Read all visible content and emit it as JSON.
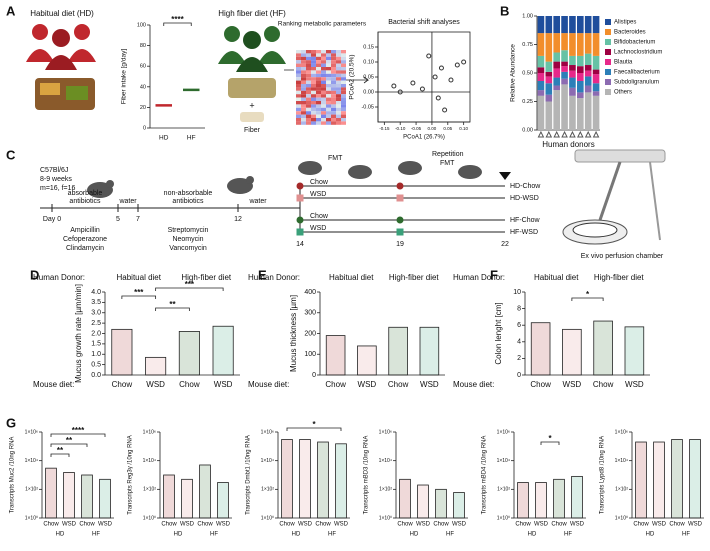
{
  "panel_labels": [
    "A",
    "B",
    "C",
    "D",
    "E",
    "F",
    "G"
  ],
  "panel_a": {
    "hd_label": "Habitual diet (HD)",
    "hf_label": "High fiber diet (HF)",
    "plus": "+",
    "fiber": "Fiber",
    "ranking": "Ranking metabolic parameters",
    "shift": "Bacterial shift analyses"
  },
  "panel_c": {
    "strain": "C57Bl/6J",
    "age": "8-9 weeks",
    "n": "m=16, f=16",
    "abs1": "absorbable",
    "abs2": "antibiotics",
    "water1": "water",
    "nonabs1": "non-absorbable",
    "nonabs2": "antibiotics",
    "water2": "water",
    "day0": "Day 0",
    "d5": "5",
    "d7": "7",
    "d12": "12",
    "drug1": "Ampicillin",
    "drug2": "Cefoperazone",
    "drug3": "Clindamycin",
    "drug4": "Streptomycin",
    "drug5": "Neomycin",
    "drug6": "Vancomycin",
    "fmt": "FMT",
    "rep1": "Repetition",
    "rep2": "FMT",
    "chow1": "Chow",
    "wsd1": "WSD",
    "chow2": "Chow",
    "wsd2": "WSD",
    "d14": "14",
    "d19": "19",
    "d22": "22",
    "g1": "HD-Chow",
    "g2": "HD-WSD",
    "g3": "HF-Chow",
    "g4": "HF-WSD",
    "chamber": "Ex vivo perfusion chamber"
  },
  "chart_data": [
    {
      "type": "mean",
      "ylabel": "Fiber intake [g/day]",
      "categories": [
        "HD",
        "HF"
      ],
      "values": [
        22,
        37
      ],
      "colors": [
        "#c0272d",
        "#2e6b2e"
      ],
      "ylim": [
        0,
        100
      ],
      "yticks": [
        0,
        20,
        40,
        60,
        80,
        100
      ],
      "annotations": [
        "****"
      ]
    },
    {
      "type": "scatter",
      "xlabel": "PCoA1 (26.7%)",
      "ylabel": "PCoA2 (20.5%)",
      "x": [
        -0.12,
        -0.1,
        -0.06,
        -0.03,
        -0.01,
        0.01,
        0.02,
        0.03,
        0.04,
        0.06,
        0.08,
        0.1
      ],
      "y": [
        0.02,
        0,
        0.03,
        0.01,
        0.12,
        0.05,
        -0.02,
        0.08,
        -0.06,
        0.04,
        0.09,
        0.1
      ],
      "color": "#333333",
      "xlim": [
        -0.17,
        0.12
      ],
      "ylim": [
        -0.1,
        0.2
      ],
      "xticks": [
        {
          "value": -0.15,
          "label": "-0.15"
        },
        {
          "value": -0.1,
          "label": "-0.10"
        },
        {
          "value": -0.05,
          "label": "-0.05"
        },
        {
          "value": 0,
          "label": "0.00"
        },
        {
          "value": 0.05,
          "label": "0.05"
        },
        {
          "value": 0.1,
          "label": "0.10"
        }
      ],
      "yticks": [
        {
          "value": -0.05,
          "label": "-0.05"
        },
        {
          "value": 0,
          "label": "0.00"
        },
        {
          "value": 0.05,
          "label": "0.05"
        },
        {
          "value": 0.1,
          "label": "0.10"
        },
        {
          "value": 0.15,
          "label": "0.15"
        }
      ]
    },
    {
      "type": "stacked",
      "ylabel": "Relative Abundance",
      "xlabel": "Human donors",
      "categories": [
        null,
        null,
        null,
        null,
        null,
        null,
        null,
        null
      ],
      "ylim": [
        0,
        1
      ],
      "yticks": [
        {
          "value": 0,
          "label": "0.00"
        },
        {
          "value": 0.25,
          "label": "0.25"
        },
        {
          "value": 0.5,
          "label": "0.50"
        },
        {
          "value": 0.75,
          "label": "0.75"
        },
        {
          "value": 1,
          "label": "1.00"
        }
      ],
      "series": [
        {
          "name": "Others",
          "color": "#b5b5b5",
          "values": [
            0.3,
            0.25,
            0.35,
            0.4,
            0.3,
            0.28,
            0.33,
            0.3
          ]
        },
        {
          "name": "Subdoligranulum",
          "color": "#8c6bb1",
          "values": [
            0.05,
            0.06,
            0.04,
            0.05,
            0.07,
            0.05,
            0.06,
            0.04
          ]
        },
        {
          "name": "Faecalibacterium",
          "color": "#2c7fb8",
          "values": [
            0.08,
            0.1,
            0.07,
            0.06,
            0.09,
            0.1,
            0.08,
            0.07
          ]
        },
        {
          "name": "Blautia",
          "color": "#e7298a",
          "values": [
            0.07,
            0.06,
            0.08,
            0.05,
            0.06,
            0.07,
            0.05,
            0.08
          ]
        },
        {
          "name": "Lachnoclostridium",
          "color": "#9e0142",
          "values": [
            0.05,
            0.04,
            0.06,
            0.04,
            0.05,
            0.06,
            0.05,
            0.04
          ]
        },
        {
          "name": "Bifidobacterium",
          "color": "#66c2a5",
          "values": [
            0.1,
            0.09,
            0.08,
            0.1,
            0.08,
            0.09,
            0.1,
            0.12
          ]
        },
        {
          "name": "Bacteroides",
          "color": "#f28e2b",
          "values": [
            0.2,
            0.25,
            0.17,
            0.15,
            0.2,
            0.2,
            0.18,
            0.2
          ]
        },
        {
          "name": "Alistipes",
          "color": "#1f4e9c",
          "values": [
            0.15,
            0.15,
            0.15,
            0.15,
            0.15,
            0.15,
            0.15,
            0.15
          ]
        }
      ]
    },
    {
      "type": "bar",
      "donor_label": "Human Donor:",
      "groups": [
        "Habitual diet",
        "High-fiber diet"
      ],
      "diet_label": "Mouse diet:",
      "ylabel": "Mucus growth rate [µm/min]",
      "categories": [
        "Chow",
        "WSD",
        "Chow",
        "WSD"
      ],
      "values": [
        2.2,
        0.85,
        2.1,
        2.35
      ],
      "colors": [
        "#a52a2a",
        "#e09090",
        "#2e6b2e",
        "#3aa07a"
      ],
      "ylim": [
        0,
        4
      ],
      "yticks": [
        {
          "value": 0,
          "label": "0.0"
        },
        {
          "value": 0.5,
          "label": "0.5"
        },
        {
          "value": 1,
          "label": "1.0"
        },
        {
          "value": 1.5,
          "label": "1.5"
        },
        {
          "value": 2,
          "label": "2.0"
        },
        {
          "value": 2.5,
          "label": "2.5"
        },
        {
          "value": 3,
          "label": "3.0"
        },
        {
          "value": 3.5,
          "label": "3.5"
        },
        {
          "value": 4,
          "label": "4.0"
        }
      ],
      "annotations": [
        "***",
        "**",
        "***"
      ]
    },
    {
      "type": "bar",
      "donor_label": "Human Donor:",
      "groups": [
        "Habitual diet",
        "High-fiber diet"
      ],
      "diet_label": "Mouse diet:",
      "ylabel": "Mucus thickness [µm]",
      "categories": [
        "Chow",
        "WSD",
        "Chow",
        "WSD"
      ],
      "values": [
        190,
        140,
        230,
        230
      ],
      "colors": [
        "#a52a2a",
        "#e09090",
        "#2e6b2e",
        "#3aa07a"
      ],
      "ylim": [
        0,
        400
      ],
      "yticks": [
        0,
        100,
        200,
        300,
        400
      ]
    },
    {
      "type": "bar",
      "donor_label": "Human Donor:",
      "groups": [
        "Habitual diet",
        "High-fiber diet"
      ],
      "diet_label": "Mouse diet:",
      "ylabel": "Colon lenght [cm]",
      "categories": [
        "Chow",
        "WSD",
        "Chow",
        "WSD"
      ],
      "values": [
        6.3,
        5.5,
        6.5,
        5.8
      ],
      "colors": [
        "#a52a2a",
        "#e09090",
        "#2e6b2e",
        "#3aa07a"
      ],
      "ylim": [
        0,
        10
      ],
      "yticks": [
        0,
        2,
        4,
        6,
        8,
        10
      ],
      "annotations": [
        "*"
      ]
    },
    {
      "type": "bar",
      "log": true,
      "ylabel": "Transcripts Muc2 /10ng RNA",
      "categories": [
        "Chow",
        "WSD",
        "Chow",
        "WSD"
      ],
      "groups": [
        "HD",
        "HF"
      ],
      "values": [
        3000,
        1500,
        1000,
        500
      ],
      "colors": [
        "#a52a2a",
        "#e09090",
        "#2e6b2e",
        "#3aa07a"
      ],
      "ylim": [
        1,
        1000000
      ],
      "yticks": [
        {
          "value": 1,
          "label": "1×10⁰"
        },
        {
          "value": 100,
          "label": "1×10²"
        },
        {
          "value": 10000,
          "label": "1×10⁴"
        },
        {
          "value": 1000000,
          "label": "1×10⁶"
        }
      ],
      "annotations": [
        "**",
        "**",
        "****"
      ]
    },
    {
      "type": "bar",
      "log": true,
      "ylabel": "Transcripts Reg3γ /10ng RNA",
      "categories": [
        "Chow",
        "WSD",
        "Chow",
        "WSD"
      ],
      "groups": [
        "HD",
        "HF"
      ],
      "values": [
        1000,
        500,
        5000,
        300
      ],
      "colors": [
        "#a52a2a",
        "#e09090",
        "#2e6b2e",
        "#3aa07a"
      ],
      "ylim": [
        1,
        1000000
      ],
      "yticks": [
        {
          "value": 1,
          "label": "1×10⁰"
        },
        {
          "value": 100,
          "label": "1×10²"
        },
        {
          "value": 10000,
          "label": "1×10⁴"
        },
        {
          "value": 1000000,
          "label": "1×10⁶"
        }
      ]
    },
    {
      "type": "bar",
      "log": true,
      "ylabel": "Transcripts Dmbt1 /10ng RNA",
      "categories": [
        "Chow",
        "WSD",
        "Chow",
        "WSD"
      ],
      "groups": [
        "HD",
        "HF"
      ],
      "values": [
        300000,
        300000,
        200000,
        150000
      ],
      "colors": [
        "#a52a2a",
        "#e09090",
        "#2e6b2e",
        "#3aa07a"
      ],
      "ylim": [
        1,
        1000000
      ],
      "yticks": [
        {
          "value": 1,
          "label": "1×10⁰"
        },
        {
          "value": 100,
          "label": "1×10²"
        },
        {
          "value": 10000,
          "label": "1×10⁴"
        },
        {
          "value": 1000000,
          "label": "1×10⁶"
        }
      ],
      "annotations": [
        "*"
      ]
    },
    {
      "type": "bar",
      "log": true,
      "ylabel": "Transcripts mBD3 /10ng RNA",
      "categories": [
        "Chow",
        "WSD",
        "Chow",
        "WSD"
      ],
      "groups": [
        "HD",
        "HF"
      ],
      "values": [
        500,
        200,
        100,
        60
      ],
      "colors": [
        "#a52a2a",
        "#e09090",
        "#2e6b2e",
        "#3aa07a"
      ],
      "ylim": [
        1,
        1000000
      ],
      "yticks": [
        {
          "value": 1,
          "label": "1×10⁰"
        },
        {
          "value": 100,
          "label": "1×10²"
        },
        {
          "value": 10000,
          "label": "1×10⁴"
        },
        {
          "value": 1000000,
          "label": "1×10⁶"
        }
      ]
    },
    {
      "type": "bar",
      "log": true,
      "ylabel": "Transcripts mBD4 /10ng RNA",
      "categories": [
        "Chow",
        "WSD",
        "Chow",
        "WSD"
      ],
      "groups": [
        "HD",
        "HF"
      ],
      "values": [
        300,
        300,
        500,
        800
      ],
      "colors": [
        "#a52a2a",
        "#e09090",
        "#2e6b2e",
        "#3aa07a"
      ],
      "ylim": [
        1,
        1000000
      ],
      "yticks": [
        {
          "value": 1,
          "label": "1×10⁰"
        },
        {
          "value": 100,
          "label": "1×10²"
        },
        {
          "value": 10000,
          "label": "1×10⁴"
        },
        {
          "value": 1000000,
          "label": "1×10⁶"
        }
      ],
      "annotations": [
        "*"
      ]
    },
    {
      "type": "bar",
      "log": true,
      "ylabel": "Transcripts Lypd8 /10ng RNA",
      "categories": [
        "Chow",
        "WSD",
        "Chow",
        "WSD"
      ],
      "groups": [
        "HD",
        "HF"
      ],
      "values": [
        200000,
        200000,
        300000,
        300000
      ],
      "colors": [
        "#a52a2a",
        "#e09090",
        "#2e6b2e",
        "#3aa07a"
      ],
      "ylim": [
        1,
        1000000
      ],
      "yticks": [
        {
          "value": 1,
          "label": "1×10⁰"
        },
        {
          "value": 100,
          "label": "1×10²"
        },
        {
          "value": 10000,
          "label": "1×10⁴"
        },
        {
          "value": 1000000,
          "label": "1×10⁶"
        }
      ]
    }
  ]
}
